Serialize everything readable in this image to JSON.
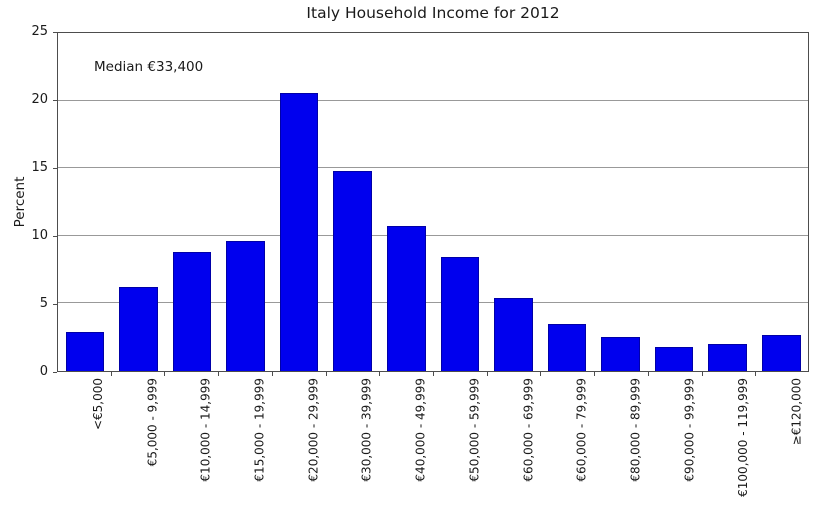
{
  "chart_data": {
    "type": "bar",
    "title": "Italy Household Income for 2012",
    "annotation": "Median €33,400",
    "xlabel": "",
    "ylabel": "Percent",
    "categories": [
      "<€5,000",
      "€5,000 - 9,999",
      "€10,000 - 14,999",
      "€15,000 - 19,999",
      "€20,000 - 29,999",
      "€30,000 - 39,999",
      "€40,000 - 49,999",
      "€50,000 - 59,999",
      "€60,000 - 69,999",
      "€60,000 - 79,999",
      "€80,000 - 89,999",
      "€90,000 - 99,999",
      "€100,000 - 119,999",
      "≥€120,000"
    ],
    "values": [
      2.9,
      6.2,
      8.8,
      9.6,
      20.6,
      14.8,
      10.7,
      8.4,
      5.4,
      3.5,
      2.5,
      1.8,
      2.0,
      2.7
    ],
    "ylim": [
      0,
      25
    ],
    "yticks": [
      0,
      5,
      10,
      15,
      20,
      25
    ],
    "grid": "horizontal",
    "legend": "none",
    "colors": {
      "bar_fill": "#0000ee",
      "bar_edge": "#0000a8",
      "gridline": "#999999",
      "frame": "#4d4d4d",
      "text": "#1a1a1a",
      "background": "#ffffff"
    }
  }
}
